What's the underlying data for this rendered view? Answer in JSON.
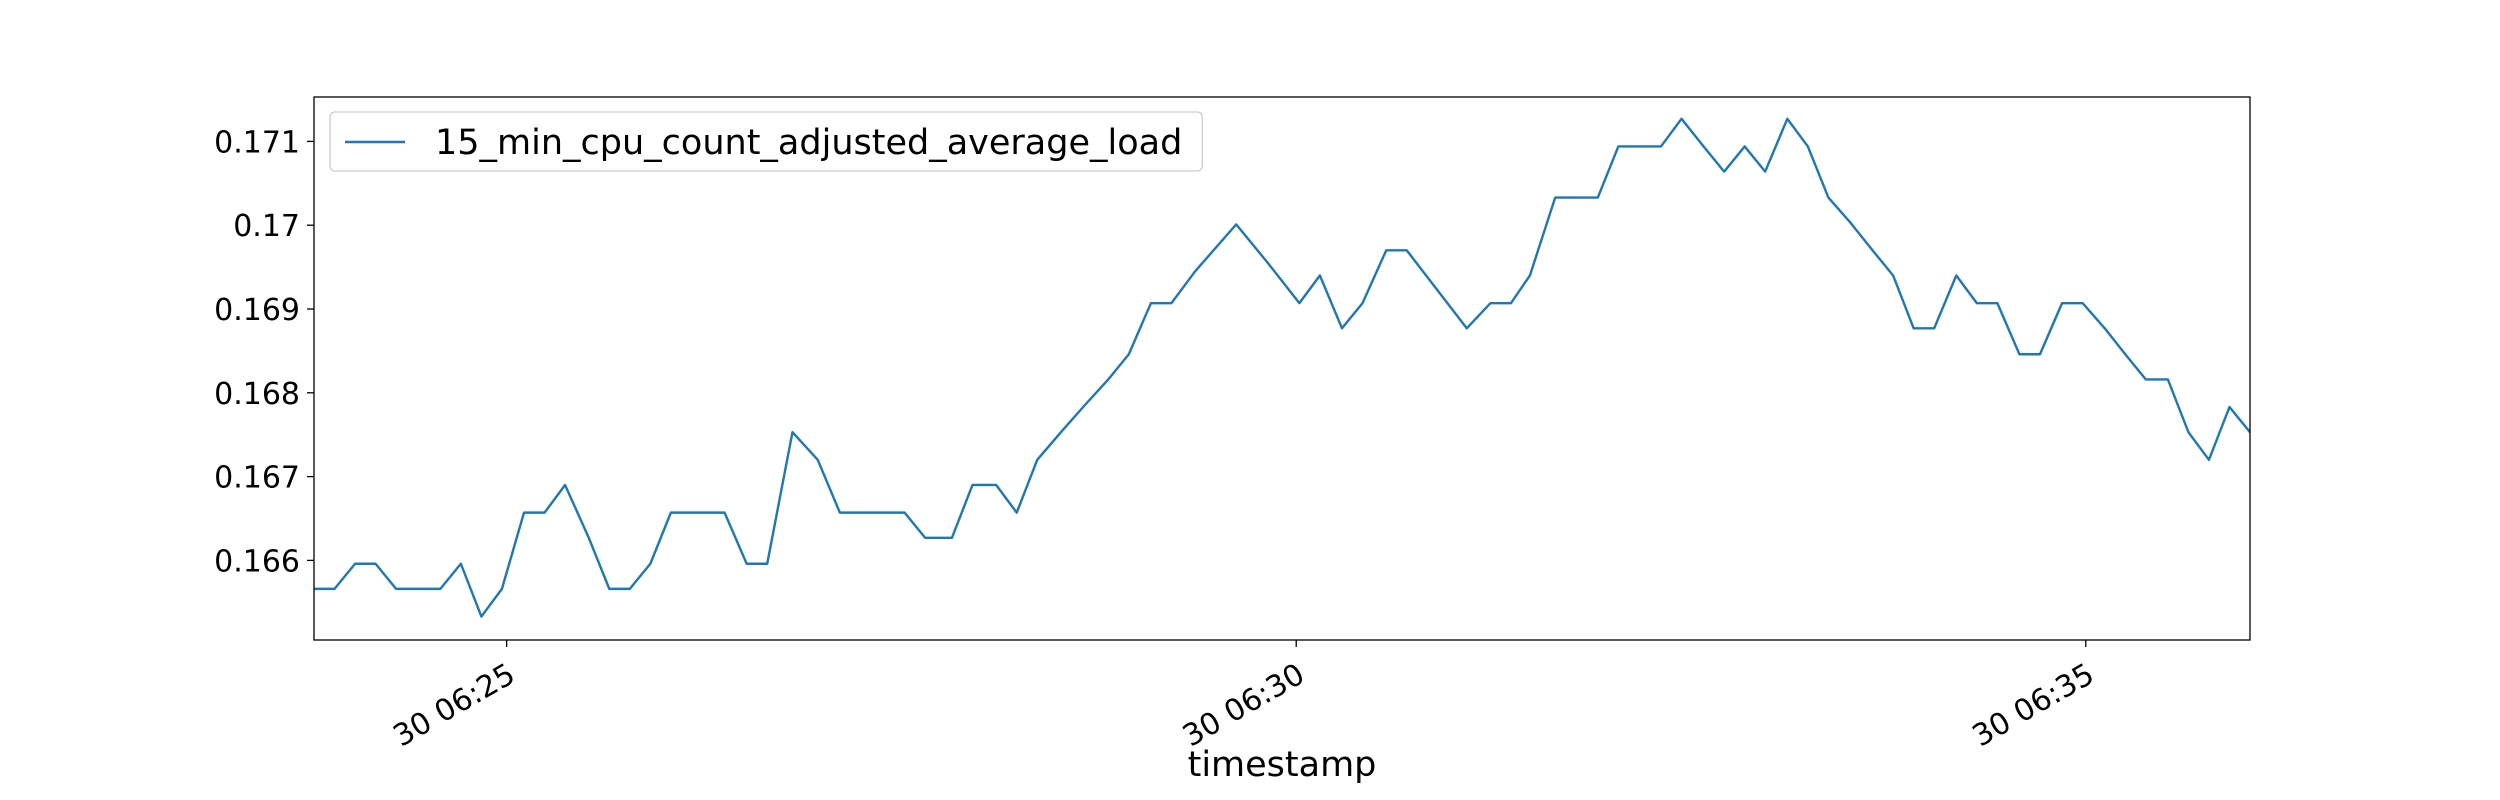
{
  "chart_data": {
    "type": "line",
    "x_label": "timestamp",
    "x": [
      23.78,
      23.91,
      24.04,
      24.17,
      24.3,
      24.44,
      24.58,
      24.71,
      24.84,
      24.97,
      25.11,
      25.24,
      25.37,
      25.52,
      25.65,
      25.78,
      25.91,
      26.04,
      26.18,
      26.31,
      26.38,
      26.52,
      26.65,
      26.81,
      26.97,
      27.11,
      27.24,
      27.37,
      27.52,
      27.65,
      27.82,
      27.95,
      28.1,
      28.23,
      28.36,
      28.51,
      28.66,
      28.81,
      28.94,
      29.08,
      29.21,
      29.36,
      29.62,
      29.82,
      30.02,
      30.15,
      30.29,
      30.42,
      30.57,
      30.7,
      30.88,
      31.08,
      31.23,
      31.36,
      31.48,
      31.64,
      31.77,
      31.91,
      32.04,
      32.17,
      32.31,
      32.44,
      32.58,
      32.71,
      32.84,
      32.97,
      33.11,
      33.24,
      33.37,
      33.51,
      33.65,
      33.78,
      33.91,
      34.04,
      34.18,
      34.31,
      34.44,
      34.58,
      34.71,
      34.85,
      34.98,
      35.12,
      35.25,
      35.38,
      35.52,
      35.65,
      35.78,
      35.91,
      36.04
    ],
    "series": [
      {
        "name": "15_min_cpu_count_adjusted_average_load",
        "color": "#1f77b4",
        "values": [
          0.16566,
          0.16566,
          0.16596,
          0.16596,
          0.16566,
          0.16566,
          0.16566,
          0.16596,
          0.16533,
          0.16566,
          0.16657,
          0.16657,
          0.1669,
          0.16627,
          0.16566,
          0.16566,
          0.16596,
          0.16657,
          0.16657,
          0.16657,
          0.16657,
          0.16596,
          0.16596,
          0.16753,
          0.1672,
          0.16657,
          0.16657,
          0.16657,
          0.16657,
          0.16627,
          0.16627,
          0.1669,
          0.1669,
          0.16657,
          0.1672,
          0.16753,
          0.16785,
          0.16816,
          0.16846,
          0.16907,
          0.16907,
          0.16945,
          0.17001,
          0.16955,
          0.16907,
          0.1694,
          0.16877,
          0.16907,
          0.1697,
          0.1697,
          0.16926,
          0.16877,
          0.16907,
          0.16907,
          0.1694,
          0.17033,
          0.17033,
          0.17033,
          0.17094,
          0.17094,
          0.17094,
          0.17127,
          0.17094,
          0.17064,
          0.17094,
          0.17064,
          0.17127,
          0.17094,
          0.17033,
          0.17003,
          0.1697,
          0.1694,
          0.16877,
          0.16877,
          0.1694,
          0.16907,
          0.16907,
          0.16846,
          0.16846,
          0.16907,
          0.16907,
          0.16877,
          0.16846,
          0.16816,
          0.16816,
          0.16753,
          0.1672,
          0.16783,
          0.16753
        ]
      }
    ],
    "xlim": [
      23.78,
      36.04
    ],
    "xticks": [
      {
        "value": 25,
        "label": "30 06:25"
      },
      {
        "value": 30,
        "label": "30 06:30"
      },
      {
        "value": 35,
        "label": "30 06:35"
      }
    ],
    "ylim": [
      0.16505,
      0.17153
    ],
    "yticks": [
      0.166,
      0.167,
      0.168,
      0.169,
      0.17,
      0.171
    ],
    "legend": "upper left",
    "grid": false
  }
}
